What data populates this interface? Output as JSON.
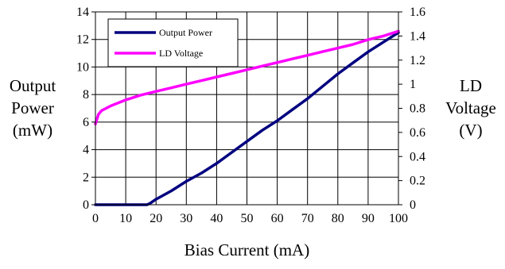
{
  "chart_data": {
    "type": "line",
    "title": "",
    "xlabel": "Bias Current (mA)",
    "ylabel_left": [
      "Output",
      "Power",
      "(mW)"
    ],
    "ylabel_right": [
      "LD",
      "Voltage",
      "(V)"
    ],
    "xlim": [
      0,
      100
    ],
    "ylim_left": [
      0,
      14
    ],
    "ylim_right": [
      0,
      1.6
    ],
    "x_ticks": [
      "0",
      "10",
      "20",
      "30",
      "40",
      "50",
      "60",
      "70",
      "80",
      "90",
      "100"
    ],
    "y_left_ticks": [
      "0",
      "2",
      "4",
      "6",
      "8",
      "10",
      "12",
      "14"
    ],
    "y_right_ticks": [
      "0",
      "0.2",
      "0.4",
      "0.6",
      "0.8",
      "1",
      "1.2",
      "1.4",
      "1.6"
    ],
    "grid": true,
    "legend_position": "top-left",
    "series": [
      {
        "name": "Output Power",
        "axis": "left",
        "color": "#000080",
        "x": [
          0,
          5,
          10,
          15,
          17,
          18,
          20,
          25,
          30,
          35,
          40,
          45,
          50,
          55,
          60,
          65,
          70,
          75,
          80,
          85,
          90,
          95,
          100
        ],
        "y": [
          0,
          0,
          0,
          0,
          0,
          0.1,
          0.4,
          1.0,
          1.7,
          2.3,
          3.0,
          3.8,
          4.6,
          5.4,
          6.1,
          6.9,
          7.7,
          8.6,
          9.5,
          10.3,
          11.1,
          11.8,
          12.5
        ]
      },
      {
        "name": "LD Voltage",
        "axis": "right",
        "color": "#ff00ff",
        "x": [
          0,
          1,
          2,
          5,
          10,
          15,
          20,
          25,
          30,
          35,
          40,
          45,
          50,
          55,
          60,
          65,
          70,
          75,
          80,
          85,
          90,
          95,
          100
        ],
        "y": [
          0.67,
          0.75,
          0.78,
          0.82,
          0.87,
          0.91,
          0.94,
          0.97,
          1.0,
          1.03,
          1.06,
          1.09,
          1.12,
          1.15,
          1.18,
          1.21,
          1.24,
          1.27,
          1.3,
          1.33,
          1.37,
          1.4,
          1.44
        ]
      }
    ]
  }
}
